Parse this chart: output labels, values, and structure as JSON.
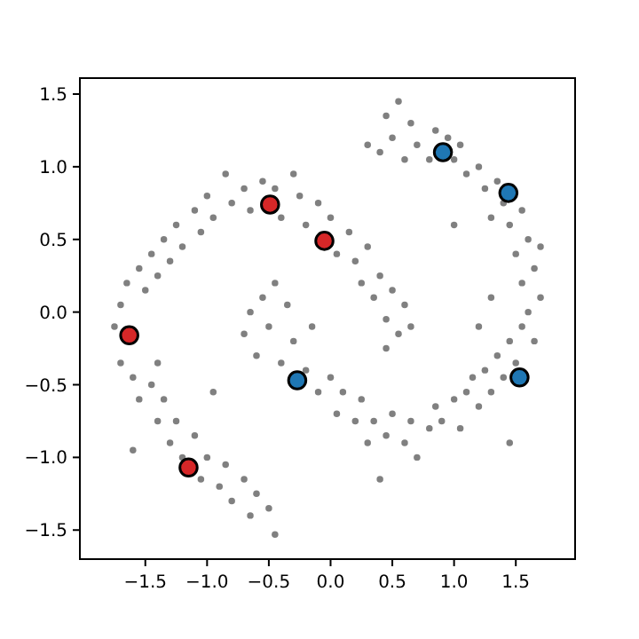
{
  "chart_data": {
    "type": "scatter",
    "xlim": [
      -2.03,
      1.98
    ],
    "ylim": [
      -1.7,
      1.61
    ],
    "xticks": [
      {
        "value": -1.5,
        "label": "−1.5"
      },
      {
        "value": -1.0,
        "label": "−1.0"
      },
      {
        "value": -0.5,
        "label": "−0.5"
      },
      {
        "value": 0,
        "label": "0.0"
      },
      {
        "value": 0.5,
        "label": "0.5"
      },
      {
        "value": 1.0,
        "label": "1.0"
      },
      {
        "value": 1.5,
        "label": "1.5"
      }
    ],
    "yticks": [
      {
        "value": -1.5,
        "label": "−1.5"
      },
      {
        "value": -1.0,
        "label": "−1.0"
      },
      {
        "value": -0.5,
        "label": "−0.5"
      },
      {
        "value": 0,
        "label": "0.0"
      },
      {
        "value": 0.5,
        "label": "0.5"
      },
      {
        "value": 1.0,
        "label": "1.0"
      },
      {
        "value": 1.5,
        "label": "1.5"
      }
    ],
    "marker": "circle",
    "grid": false,
    "series": [
      {
        "color": "#808080",
        "x": [
          -1.75,
          -1.7,
          -1.65,
          -1.55,
          -1.5,
          -1.45,
          -1.4,
          -1.35,
          -1.3,
          -1.25,
          -1.2,
          -1.1,
          -1.05,
          -1.0,
          -0.95,
          -0.85,
          -0.8,
          -0.7,
          -0.65,
          -0.55,
          -0.45,
          -0.4,
          -0.3,
          -0.25,
          -0.2,
          -0.1,
          0.0,
          0.05,
          0.15,
          0.2,
          0.25,
          0.3,
          0.35,
          0.4,
          0.45,
          0.5,
          0.55,
          0.6,
          0.45,
          0.65,
          -1.7,
          -1.6,
          -1.55,
          -1.45,
          -1.4,
          -1.35,
          -1.3,
          -1.25,
          -1.2,
          -1.1,
          -1.05,
          -1.0,
          -0.9,
          -0.85,
          -0.8,
          -0.7,
          -0.65,
          -0.6,
          -0.5,
          -0.45,
          -1.6,
          -1.4,
          -0.95,
          -0.7,
          -0.65,
          -0.6,
          -0.55,
          -0.5,
          -0.45,
          -0.4,
          -0.35,
          -0.3,
          -0.2,
          -0.15,
          -0.1,
          0.0,
          0.05,
          0.1,
          0.2,
          0.25,
          0.3,
          0.35,
          0.4,
          0.45,
          0.5,
          0.6,
          0.65,
          0.7,
          0.8,
          0.85,
          0.9,
          1.0,
          1.05,
          1.1,
          1.15,
          1.2,
          1.25,
          1.3,
          1.35,
          1.4,
          1.45,
          1.5,
          1.55,
          1.6,
          1.65,
          1.7,
          1.55,
          1.65,
          1.5,
          1.6,
          1.7,
          1.45,
          1.55,
          1.4,
          1.35,
          1.3,
          1.25,
          1.2,
          1.1,
          1.05,
          1.0,
          0.95,
          0.85,
          0.8,
          0.7,
          0.65,
          0.6,
          0.5,
          0.45,
          0.4,
          0.3,
          0.55,
          1.0,
          1.3,
          1.2,
          1.45
        ],
        "values": [
          -0.1,
          0.05,
          0.2,
          0.3,
          0.15,
          0.4,
          0.25,
          0.5,
          0.35,
          0.6,
          0.45,
          0.7,
          0.55,
          0.8,
          0.65,
          0.95,
          0.75,
          0.85,
          0.7,
          0.9,
          0.85,
          0.65,
          0.95,
          0.8,
          0.6,
          0.75,
          0.65,
          0.4,
          0.55,
          0.35,
          0.2,
          0.45,
          0.1,
          0.25,
          -0.05,
          0.15,
          -0.15,
          0.05,
          -0.25,
          -0.1,
          -0.35,
          -0.45,
          -0.6,
          -0.5,
          -0.75,
          -0.6,
          -0.9,
          -0.75,
          -1.0,
          -0.85,
          -1.15,
          -1.0,
          -1.2,
          -1.05,
          -1.3,
          -1.15,
          -1.4,
          -1.25,
          -1.35,
          -1.53,
          -0.95,
          -0.35,
          -0.55,
          -0.15,
          0.0,
          -0.3,
          0.1,
          -0.1,
          0.2,
          -0.35,
          0.05,
          -0.2,
          -0.4,
          -0.1,
          -0.55,
          -0.45,
          -0.7,
          -0.55,
          -0.75,
          -0.6,
          -0.9,
          -0.75,
          -1.15,
          -0.85,
          -0.7,
          -0.9,
          -0.75,
          -1.0,
          -0.8,
          -0.65,
          -0.75,
          -0.6,
          -0.8,
          -0.55,
          -0.45,
          -0.65,
          -0.4,
          -0.55,
          -0.3,
          -0.45,
          -0.2,
          -0.35,
          -0.1,
          0.0,
          -0.2,
          0.1,
          0.2,
          0.3,
          0.4,
          0.5,
          0.45,
          0.6,
          0.7,
          0.75,
          0.9,
          0.65,
          0.85,
          1.0,
          0.95,
          1.15,
          1.05,
          1.2,
          1.25,
          1.05,
          1.15,
          1.3,
          1.05,
          1.2,
          1.35,
          1.1,
          1.15,
          1.45,
          0.6,
          0.1,
          -0.1,
          -0.9
        ]
      },
      {
        "color": "#d62728",
        "x": [
          -1.63,
          -0.49,
          -0.05,
          -1.15
        ],
        "values": [
          -0.16,
          0.74,
          0.49,
          -1.07
        ]
      },
      {
        "color": "#1f77b4",
        "x": [
          0.91,
          1.44,
          -0.27,
          1.53
        ],
        "values": [
          1.1,
          0.82,
          -0.47,
          -0.45
        ]
      }
    ]
  }
}
